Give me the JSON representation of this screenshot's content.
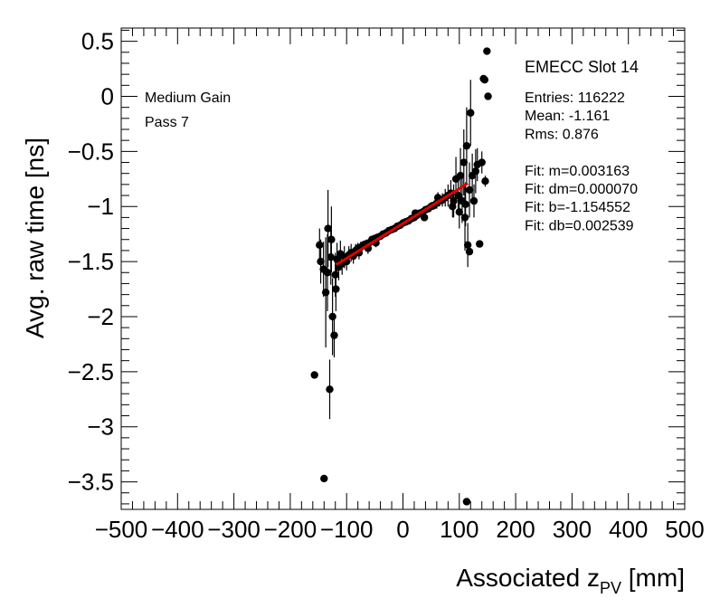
{
  "chart_data": {
    "type": "scatter",
    "title": "",
    "xlabel": "Associated z",
    "xlabel_sub": "PV",
    "xlabel_unit": " [mm]",
    "ylabel": "Avg. raw time [ns]",
    "xlim": [
      -500,
      500
    ],
    "ylim": [
      -3.75,
      0.62
    ],
    "xticks": [
      -500,
      -400,
      -300,
      -200,
      -100,
      0,
      100,
      200,
      300,
      400,
      500
    ],
    "xtick_labels": [
      "−500",
      "−400",
      "−300",
      "−200",
      "−100",
      "0",
      "100",
      "200",
      "300",
      "400",
      "500"
    ],
    "yticks": [
      0.5,
      0,
      -0.5,
      -1,
      -1.5,
      -2,
      -2.5,
      -3,
      -3.5
    ],
    "ytick_labels": [
      "0.5",
      "0",
      "−0.5",
      "−1",
      "−1.5",
      "−2",
      "−2.5",
      "−3",
      "−3.5"
    ],
    "grid": false,
    "annotations": {
      "gain": "Medium Gain",
      "pass": "Pass 7"
    },
    "stats_box": {
      "title": "EMECC Slot 14",
      "lines": [
        "Entries: 116222",
        "Mean: -1.161",
        "Rms: 0.876",
        "",
        "Fit: m=0.003163",
        "Fit: dm=0.000070",
        "Fit: b=-1.154552",
        "Fit: db=0.002539"
      ]
    },
    "fit_line": {
      "color": "#e00000",
      "m": 0.003163,
      "b": -1.154552,
      "x_range": [
        -118,
        115
      ]
    },
    "points": [
      {
        "x": -157,
        "y": -2.53,
        "err": 0
      },
      {
        "x": -140,
        "y": -3.47,
        "err": 0
      },
      {
        "x": 113,
        "y": -3.68,
        "err": 0
      },
      {
        "x": 149,
        "y": 0.41,
        "err": 0
      },
      {
        "x": 151,
        "y": 0.0,
        "err": 0
      },
      {
        "x": 143,
        "y": 0.16,
        "err": 0
      },
      {
        "x": 145,
        "y": 0.15,
        "err": 0
      },
      {
        "x": 118,
        "y": -1.41,
        "err": 0
      },
      {
        "x": 136,
        "y": -1.34,
        "err": 0
      },
      {
        "x": -148,
        "y": -1.35,
        "err": 0.15
      },
      {
        "x": -146,
        "y": -1.5,
        "err": 0.2
      },
      {
        "x": -141,
        "y": -1.57,
        "err": 0.25
      },
      {
        "x": -137,
        "y": -1.78,
        "err": 0.5
      },
      {
        "x": -134,
        "y": -1.6,
        "err": 0.35
      },
      {
        "x": -130,
        "y": -2.66,
        "err": 0.27
      },
      {
        "x": -128,
        "y": -1.46,
        "err": 0.25
      },
      {
        "x": -125,
        "y": -2.0,
        "err": 0.35
      },
      {
        "x": -122,
        "y": -2.17,
        "err": 0.2
      },
      {
        "x": -120,
        "y": -1.62,
        "err": 0.2
      },
      {
        "x": -117,
        "y": -1.48,
        "err": 0.15
      },
      {
        "x": -114,
        "y": -1.55,
        "err": 0.12
      },
      {
        "x": -111,
        "y": -1.43,
        "err": 0.12
      },
      {
        "x": -108,
        "y": -1.52,
        "err": 0.1
      },
      {
        "x": -104,
        "y": -1.46,
        "err": 0.1
      },
      {
        "x": -100,
        "y": -1.5,
        "err": 0.08
      },
      {
        "x": -96,
        "y": -1.44,
        "err": 0.08
      },
      {
        "x": -92,
        "y": -1.42,
        "err": 0.08
      },
      {
        "x": -88,
        "y": -1.45,
        "err": 0.07
      },
      {
        "x": -84,
        "y": -1.4,
        "err": 0.06
      },
      {
        "x": -80,
        "y": -1.38,
        "err": 0.05
      },
      {
        "x": -75,
        "y": -1.37,
        "err": 0.05
      },
      {
        "x": -70,
        "y": -1.35,
        "err": 0.04
      },
      {
        "x": -65,
        "y": -1.34,
        "err": 0.04
      },
      {
        "x": -60,
        "y": -1.33,
        "err": 0.03
      },
      {
        "x": -55,
        "y": -1.3,
        "err": 0.03
      },
      {
        "x": -50,
        "y": -1.29,
        "err": 0.03
      },
      {
        "x": -45,
        "y": -1.28,
        "err": 0.02
      },
      {
        "x": -40,
        "y": -1.27,
        "err": 0.02
      },
      {
        "x": -35,
        "y": -1.25,
        "err": 0.02
      },
      {
        "x": -30,
        "y": -1.24,
        "err": 0.02
      },
      {
        "x": -25,
        "y": -1.22,
        "err": 0.02
      },
      {
        "x": -20,
        "y": -1.21,
        "err": 0.02
      },
      {
        "x": -15,
        "y": -1.2,
        "err": 0.02
      },
      {
        "x": -10,
        "y": -1.18,
        "err": 0.02
      },
      {
        "x": -5,
        "y": -1.17,
        "err": 0.02
      },
      {
        "x": 0,
        "y": -1.15,
        "err": 0.02
      },
      {
        "x": 5,
        "y": -1.14,
        "err": 0.02
      },
      {
        "x": 10,
        "y": -1.13,
        "err": 0.02
      },
      {
        "x": 15,
        "y": -1.11,
        "err": 0.02
      },
      {
        "x": 20,
        "y": -1.1,
        "err": 0.02
      },
      {
        "x": 25,
        "y": -1.08,
        "err": 0.02
      },
      {
        "x": 30,
        "y": -1.06,
        "err": 0.02
      },
      {
        "x": 35,
        "y": -1.05,
        "err": 0.03
      },
      {
        "x": 40,
        "y": -1.03,
        "err": 0.03
      },
      {
        "x": 45,
        "y": -1.02,
        "err": 0.03
      },
      {
        "x": 50,
        "y": -1.0,
        "err": 0.04
      },
      {
        "x": 55,
        "y": -0.99,
        "err": 0.04
      },
      {
        "x": 60,
        "y": -0.97,
        "err": 0.05
      },
      {
        "x": 65,
        "y": -0.95,
        "err": 0.05
      },
      {
        "x": 70,
        "y": -0.94,
        "err": 0.06
      },
      {
        "x": 75,
        "y": -0.92,
        "err": 0.08
      },
      {
        "x": 80,
        "y": -0.9,
        "err": 0.1
      },
      {
        "x": 85,
        "y": -0.88,
        "err": 0.12
      },
      {
        "x": 90,
        "y": -0.95,
        "err": 0.15
      },
      {
        "x": 94,
        "y": -0.75,
        "err": 0.2
      },
      {
        "x": 98,
        "y": -0.9,
        "err": 0.15
      },
      {
        "x": 102,
        "y": -0.72,
        "err": 0.25
      },
      {
        "x": 105,
        "y": -0.95,
        "err": 0.2
      },
      {
        "x": 108,
        "y": -0.6,
        "err": 0.3
      },
      {
        "x": 110,
        "y": -1.1,
        "err": 0.3
      },
      {
        "x": 113,
        "y": -0.45,
        "err": 0.35
      },
      {
        "x": 115,
        "y": -1.35,
        "err": 0.2
      },
      {
        "x": 118,
        "y": -0.85,
        "err": 0.25
      },
      {
        "x": 120,
        "y": -0.15,
        "err": 0.3
      },
      {
        "x": 123,
        "y": -0.72,
        "err": 0.2
      },
      {
        "x": 126,
        "y": -0.95,
        "err": 0.15
      },
      {
        "x": 129,
        "y": -0.68,
        "err": 0.2
      },
      {
        "x": 132,
        "y": -0.62,
        "err": 0.15
      },
      {
        "x": 140,
        "y": -0.6,
        "err": 0.1
      },
      {
        "x": 146,
        "y": -0.77,
        "err": 0.05
      },
      {
        "x": -78,
        "y": -1.42,
        "err": 0.06
      },
      {
        "x": -62,
        "y": -1.38,
        "err": 0.05
      },
      {
        "x": -48,
        "y": -1.33,
        "err": 0.04
      },
      {
        "x": 22,
        "y": -1.06,
        "err": 0.03
      },
      {
        "x": 38,
        "y": -1.1,
        "err": 0.03
      },
      {
        "x": 62,
        "y": -0.92,
        "err": 0.05
      },
      {
        "x": 88,
        "y": -1.0,
        "err": 0.1
      },
      {
        "x": -133,
        "y": -1.2,
        "err": 0.35
      },
      {
        "x": -127,
        "y": -1.3,
        "err": 0.3
      },
      {
        "x": -119,
        "y": -1.75,
        "err": 0.2
      },
      {
        "x": 100,
        "y": -1.05,
        "err": 0.15
      },
      {
        "x": 111,
        "y": -0.98,
        "err": 0.2
      }
    ]
  }
}
